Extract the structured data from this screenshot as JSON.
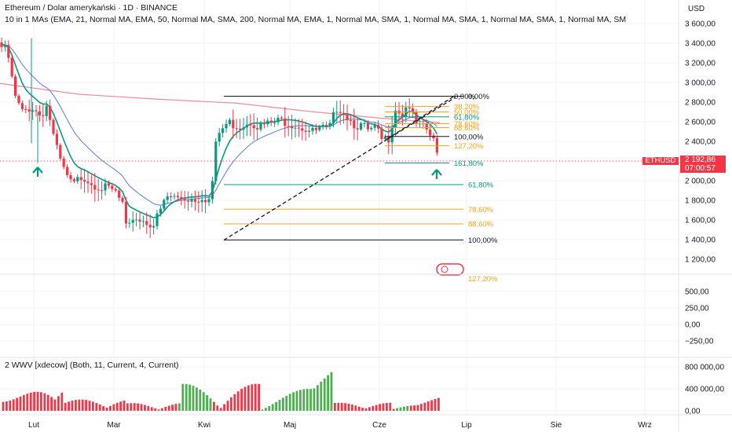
{
  "header": {
    "symbol_title": "Ethereum / Dolar amerykański · 1D · BINANCE",
    "ma_indicator": "10 in 1 MAs (EMA, 21, Normal MA, EMA, 50, Normal MA, SMA, 200, Normal MA, EMA, 1, Normal MA, SMA, 1, Normal MA, SMA, 1, Normal MA, SMA, 1, Normal MA, SM",
    "volume_indicator": "2 WWV [xdecow] (Both, 11, Current, 4, Current)"
  },
  "price_axis": {
    "currency": "USD",
    "ticks": [
      "3 600,00",
      "3 400,00",
      "3 200,00",
      "3 000,00",
      "2 800,00",
      "2 600,00",
      "2 400,00",
      "2 200,00",
      "2 000,00",
      "1 800,00",
      "1 600,00",
      "1 400,00",
      "1 200,00"
    ]
  },
  "mid_axis": {
    "ticks": [
      "500,00",
      "250,00",
      "0,00",
      "−250,00"
    ]
  },
  "volume_axis": {
    "ticks": [
      "800 000,00",
      "400 000,00",
      "0,00"
    ]
  },
  "time_axis": {
    "labels": [
      "Lut",
      "Mar",
      "Kwi",
      "Maj",
      "Cze",
      "Lip",
      "Sie",
      "Wrz"
    ]
  },
  "symbol_tag": "ETHUSD",
  "current_price": "2 192,86",
  "countdown": "07:00:57",
  "fib_lower": {
    "levels": [
      {
        "label": "0,00%",
        "price": 2860,
        "color": "#131722"
      },
      {
        "label": "61,80%",
        "price": 1960,
        "color": "#089981"
      },
      {
        "label": "78,60%",
        "price": 1710,
        "color": "#f7a21b"
      },
      {
        "label": "88,60%",
        "price": 1560,
        "color": "#f7a21b"
      },
      {
        "label": "100,00%",
        "price": 1395,
        "color": "#131722"
      },
      {
        "label": "127,20%",
        "price": 1005,
        "color": "#f7a21b"
      }
    ]
  },
  "fib_upper": {
    "levels": [
      {
        "label": "0,00%",
        "price": 2860,
        "color": "#131722"
      },
      {
        "label": "38,20%",
        "price": 2755,
        "color": "#f7a21b"
      },
      {
        "label": "50,00%",
        "price": 2700,
        "color": "#f7a21b"
      },
      {
        "label": "61,80%",
        "price": 2650,
        "color": "#089981"
      },
      {
        "label": "78,60%",
        "price": 2580,
        "color": "#f7a21b"
      },
      {
        "label": "88,60%",
        "price": 2540,
        "color": "#f7a21b"
      },
      {
        "label": "100,00%",
        "price": 2450,
        "color": "#131722"
      },
      {
        "label": "127,20%",
        "price": 2355,
        "color": "#f7a21b"
      },
      {
        "label": "161,80%",
        "price": 2180,
        "color": "#089981"
      }
    ]
  },
  "colors": {
    "up": "#089981",
    "down": "#f23645",
    "ema21": "#089981",
    "ema50": "#5b7bd5",
    "sma200": "#f08c96",
    "fib_orange": "#f7a21b",
    "grid": "#f0f3fa"
  }
}
